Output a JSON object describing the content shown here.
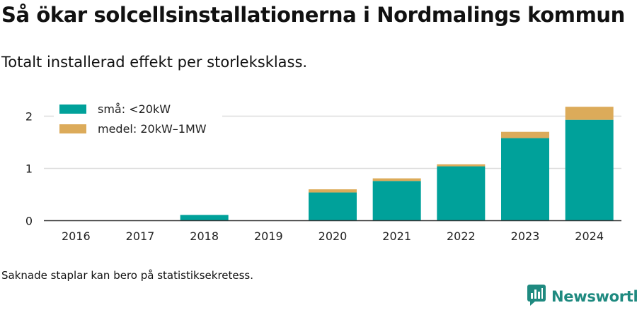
{
  "title": "Så ökar solcellsinstallationerna i Nordmalings kommun",
  "subtitle": "Totalt installerad effekt per storleksklass.",
  "footnote": "Saknade staplar kan bero på statistiksekretess.",
  "brand": {
    "name": "Newsworthy",
    "logo_icon": "bar-chart-speech-bubble-icon",
    "color": "#1f8a80"
  },
  "chart_data": {
    "type": "bar",
    "stacked": true,
    "categories": [
      "2016",
      "2017",
      "2018",
      "2019",
      "2020",
      "2021",
      "2022",
      "2023",
      "2024"
    ],
    "series": [
      {
        "name": "små: <20kW",
        "color": "#00a19a",
        "values": [
          0,
          0,
          0.11,
          0,
          0.54,
          0.76,
          1.04,
          1.58,
          1.93
        ]
      },
      {
        "name": "medel: 20kW–1MW",
        "color": "#dcab5a",
        "values": [
          0,
          0,
          0,
          0,
          0.06,
          0.05,
          0.04,
          0.12,
          0.25
        ]
      }
    ],
    "yticks": [
      0,
      1,
      2
    ],
    "ylim": [
      0,
      2.3
    ],
    "grid": true,
    "legend_position": "top-left"
  }
}
